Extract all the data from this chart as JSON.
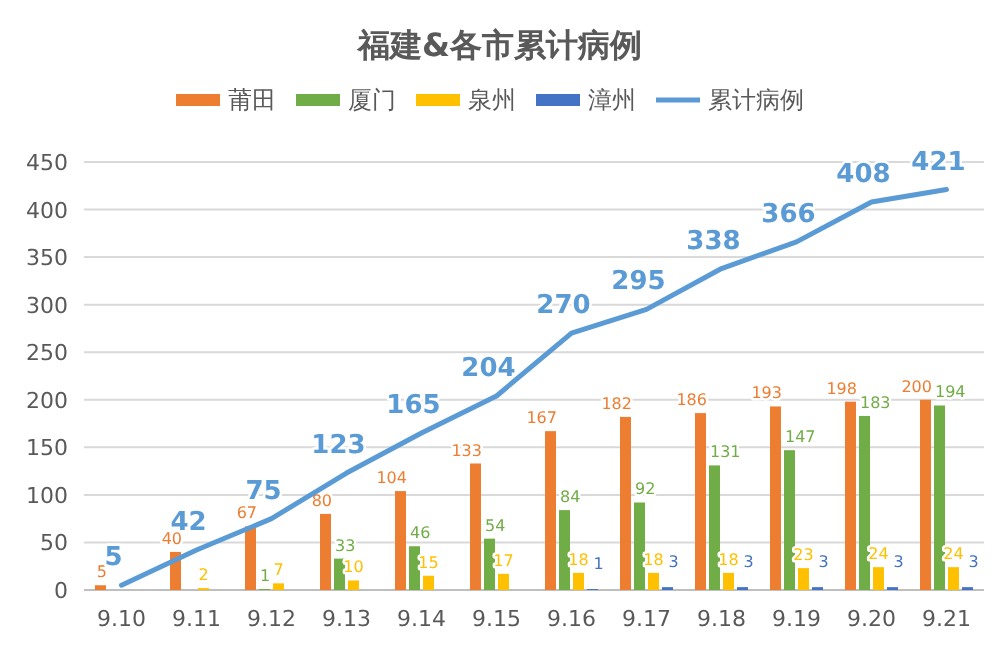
{
  "chart_data": {
    "type": "bar",
    "title": "福建&各市累计病例",
    "categories": [
      "9.10",
      "9.11",
      "9.12",
      "9.13",
      "9.14",
      "9.15",
      "9.16",
      "9.17",
      "9.18",
      "9.19",
      "9.20",
      "9.21"
    ],
    "series": [
      {
        "name": "莆田",
        "color": "#ed7d31",
        "values": [
          5,
          40,
          67,
          80,
          104,
          133,
          167,
          182,
          186,
          193,
          198,
          200
        ]
      },
      {
        "name": "厦门",
        "color": "#70ad47",
        "values": [
          null,
          null,
          1,
          33,
          46,
          54,
          84,
          92,
          131,
          147,
          183,
          194
        ]
      },
      {
        "name": "泉州",
        "color": "#ffc000",
        "values": [
          null,
          2,
          7,
          10,
          15,
          17,
          18,
          18,
          18,
          23,
          24,
          24
        ]
      },
      {
        "name": "漳州",
        "color": "#4472c4",
        "values": [
          null,
          null,
          null,
          null,
          null,
          null,
          1,
          3,
          3,
          3,
          3,
          3
        ]
      },
      {
        "name": "累计病例",
        "color": "#5b9bd5",
        "type": "line",
        "values": [
          5,
          42,
          75,
          123,
          165,
          204,
          270,
          295,
          338,
          366,
          408,
          421
        ]
      }
    ],
    "ylim": [
      0,
      450
    ],
    "yticks": [
      0,
      50,
      100,
      150,
      200,
      250,
      300,
      350,
      400,
      450
    ],
    "grid": "y",
    "legend": "top",
    "data_labels": true
  }
}
